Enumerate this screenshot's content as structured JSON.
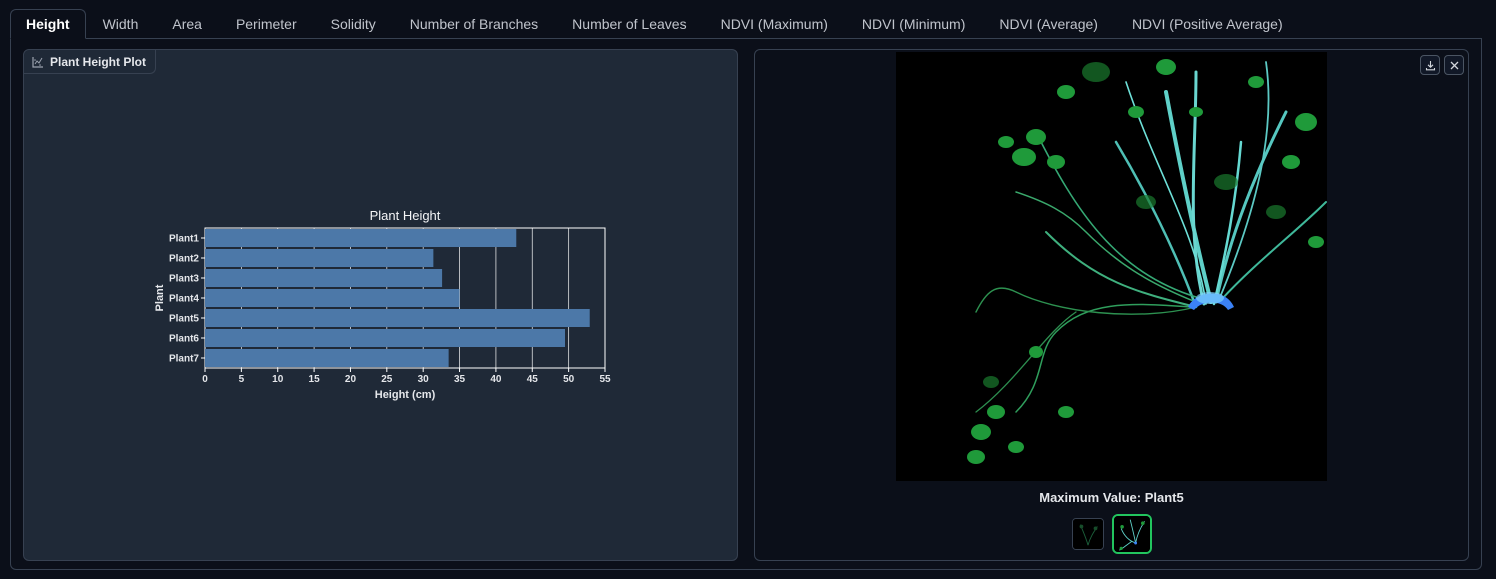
{
  "tabs": [
    {
      "label": "Height",
      "active": true
    },
    {
      "label": "Width"
    },
    {
      "label": "Area"
    },
    {
      "label": "Perimeter"
    },
    {
      "label": "Solidity"
    },
    {
      "label": "Number of Branches"
    },
    {
      "label": "Number of Leaves"
    },
    {
      "label": "NDVI (Maximum)"
    },
    {
      "label": "NDVI (Minimum)"
    },
    {
      "label": "NDVI (Average)"
    },
    {
      "label": "NDVI (Positive Average)"
    }
  ],
  "plot": {
    "label": "Plant Height Plot",
    "icon": "chart-icon"
  },
  "chart_data": {
    "type": "bar",
    "orientation": "horizontal",
    "title": "Plant Height",
    "xlabel": "Height (cm)",
    "ylabel": "Plant",
    "categories": [
      "Plant1",
      "Plant2",
      "Plant3",
      "Plant4",
      "Plant5",
      "Plant6",
      "Plant7"
    ],
    "values": [
      42.8,
      31.4,
      32.6,
      35.0,
      52.9,
      49.5,
      33.5
    ],
    "xlim": [
      0,
      55
    ],
    "xticks": [
      0,
      5,
      10,
      15,
      20,
      25,
      30,
      35,
      40,
      45,
      50,
      55
    ],
    "grid": true,
    "bar_color": "#4c78a8"
  },
  "gallery": {
    "caption": "Maximum Value: Plant5",
    "download_icon": "download-icon",
    "close_icon": "close-icon",
    "thumbnails": [
      {
        "name": "thumbnail-1",
        "selected": false
      },
      {
        "name": "thumbnail-2",
        "selected": true
      }
    ],
    "selected_color": "#22c55e"
  }
}
